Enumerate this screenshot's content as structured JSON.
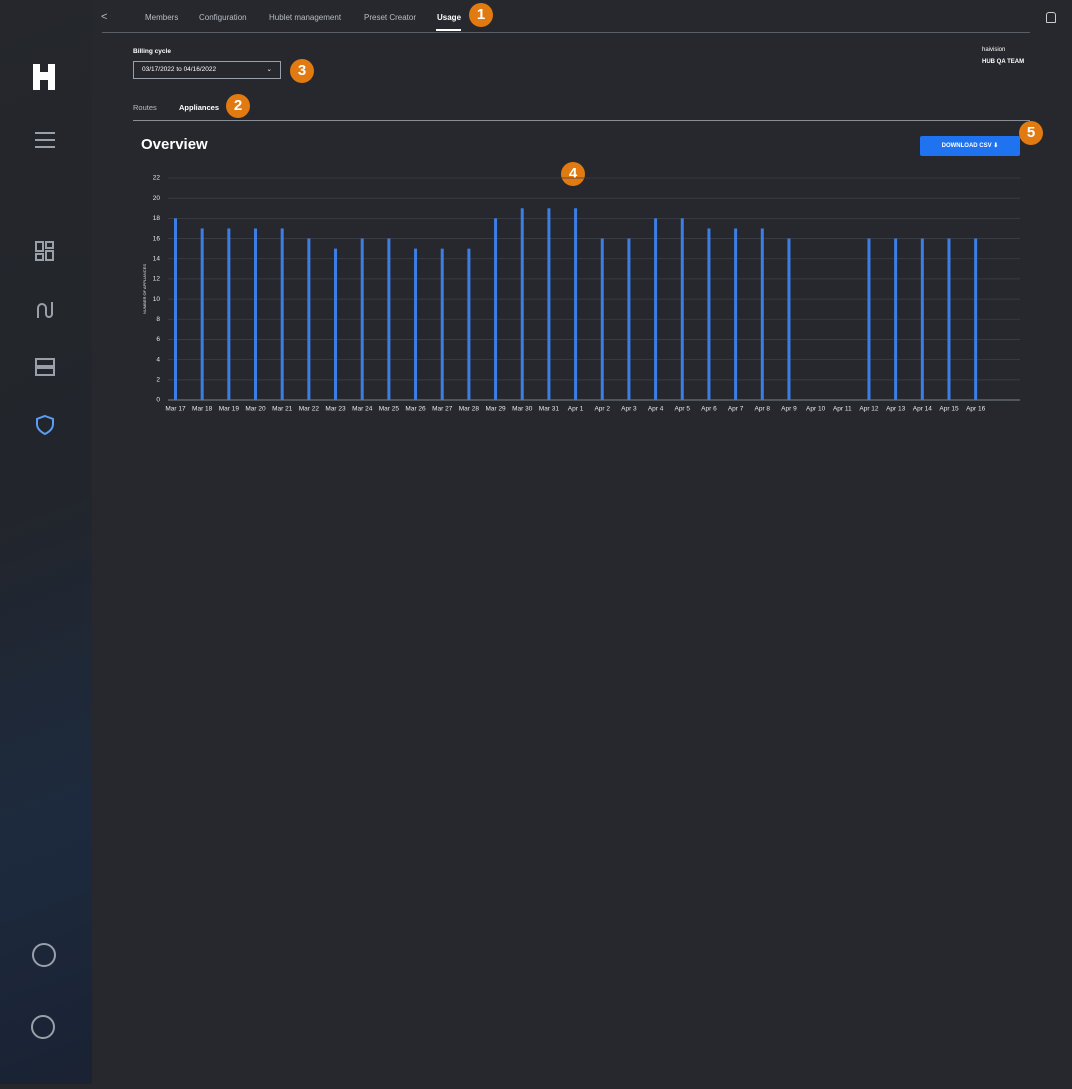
{
  "nav": {
    "tabs": [
      "Members",
      "Configuration",
      "Hublet management",
      "Preset Creator",
      "Usage"
    ]
  },
  "billing": {
    "label": "Billing cycle",
    "range": "03/17/2022 to 04/16/2022"
  },
  "account": {
    "org": "haivision",
    "team": "HUB QA TEAM"
  },
  "subtabs": [
    "Routes",
    "Appliances"
  ],
  "section": {
    "title": "Overview",
    "button": "DOWNLOAD CSV"
  },
  "annotations": [
    "1",
    "2",
    "3",
    "4",
    "5"
  ],
  "chart_data": {
    "type": "bar",
    "y_label": "NUMBER OF APPLIANCES",
    "color": "#3b7fe6",
    "grid": true,
    "categories": [
      "Mar 17",
      "Mar 18",
      "Mar 19",
      "Mar 20",
      "Mar 21",
      "Mar 22",
      "Mar 23",
      "Mar 24",
      "Mar 25",
      "Mar 26",
      "Mar 27",
      "Mar 28",
      "Mar 29",
      "Mar 30",
      "Mar 31",
      "Apr 1",
      "Apr 2",
      "Apr 3",
      "Apr 4",
      "Apr 5",
      "Apr 6",
      "Apr 7",
      "Apr 8",
      "Apr 9",
      "Apr 10",
      "Apr 11",
      "Apr 12",
      "Apr 13",
      "Apr 14",
      "Apr 15",
      "Apr 16"
    ],
    "values": [
      18,
      17,
      17,
      17,
      17,
      16,
      15,
      16,
      16,
      15,
      15,
      15,
      18,
      19,
      19,
      19,
      16,
      16,
      18,
      18,
      17,
      17,
      17,
      16,
      0,
      0,
      16,
      16,
      16,
      16,
      16
    ],
    "ylim": [
      0,
      22
    ],
    "yticks": [
      0,
      2,
      4,
      6,
      8,
      10,
      12,
      14,
      16,
      18,
      20,
      22
    ]
  }
}
